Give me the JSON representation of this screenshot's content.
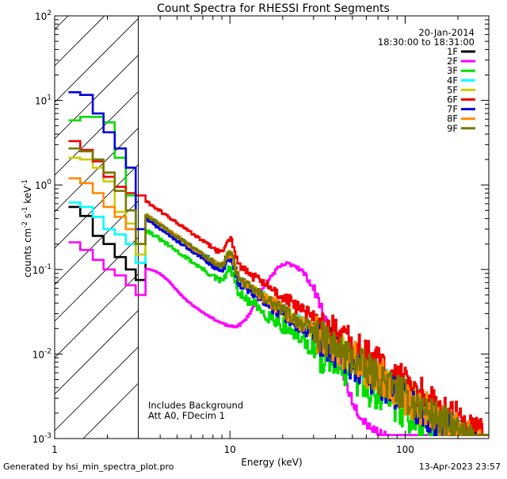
{
  "chart_data": {
    "type": "line",
    "title": "Count Spectra for RHESSI Front Segments",
    "xlabel": "Energy (keV)",
    "ylabel_base": "counts cm",
    "ylabel_exp1": "-2",
    "ylabel_mid": " s",
    "ylabel_exp2": "-1",
    "ylabel_unit": " keV",
    "ylabel_exp3": "-1",
    "x_scale": "log",
    "y_scale": "log",
    "xlim": [
      1,
      300
    ],
    "ylim": [
      0.001,
      100
    ],
    "x_ticks": [
      {
        "v": 1,
        "label": "1"
      },
      {
        "v": 10,
        "label": "10"
      },
      {
        "v": 100,
        "label": "100"
      }
    ],
    "y_ticks": [
      {
        "v": 0.001,
        "base": "10",
        "exp": "-3"
      },
      {
        "v": 0.01,
        "base": "10",
        "exp": "-2"
      },
      {
        "v": 0.1,
        "base": "10",
        "exp": "-1"
      },
      {
        "v": 1,
        "base": "10",
        "exp": "0"
      },
      {
        "v": 10,
        "base": "10",
        "exp": "1"
      },
      {
        "v": 100,
        "base": "10",
        "exp": "2"
      }
    ],
    "excluded_region_keV": [
      1,
      3
    ],
    "date": "20-Jan-2014",
    "time_range": "18:30:00 to 18:31:00",
    "annotation_lines": [
      "Includes Background",
      "Att A0, FDecim 1"
    ],
    "legend": [
      {
        "name": "1F",
        "color": "#000000"
      },
      {
        "name": "2F",
        "color": "#ff00ff"
      },
      {
        "name": "3F",
        "color": "#00dd00"
      },
      {
        "name": "4F",
        "color": "#00ffff"
      },
      {
        "name": "5F",
        "color": "#cccc00"
      },
      {
        "name": "6F",
        "color": "#ee0000"
      },
      {
        "name": "7F",
        "color": "#0000dd"
      },
      {
        "name": "8F",
        "color": "#ff8800"
      },
      {
        "name": "9F",
        "color": "#777700"
      }
    ],
    "series": [
      {
        "name": "1F",
        "color": "#000000",
        "low": [
          0.55,
          0.43,
          0.25,
          0.2,
          0.14,
          0.1,
          0.075
        ],
        "a10": 0.09,
        "bump": 0.7,
        "wide": 1.0,
        "noise": 0.35,
        "seed": 11
      },
      {
        "name": "2F",
        "color": "#ff00ff",
        "low": [
          0.21,
          0.17,
          0.13,
          0.1,
          0.085,
          0.065,
          0.05
        ],
        "a10": 0.022,
        "bump": 0.55,
        "wide": 5.4,
        "noise": 0.12,
        "seed": 23
      },
      {
        "name": "3F",
        "color": "#00dd00",
        "low": [
          5.8,
          6.4,
          6.4,
          5.5,
          2.1,
          0.75,
          0.2
        ],
        "a10": 0.06,
        "bump": 0.65,
        "wide": 1.1,
        "noise": 0.45,
        "seed": 31
      },
      {
        "name": "4F",
        "color": "#00ffff",
        "low": [
          0.62,
          0.55,
          0.42,
          0.3,
          0.26,
          0.2,
          0.12
        ],
        "a10": 0.09,
        "bump": 0.75,
        "wide": 1.1,
        "noise": 0.35,
        "seed": 41
      },
      {
        "name": "5F",
        "color": "#cccc00",
        "low": [
          2.1,
          2.0,
          1.6,
          1.1,
          0.48,
          0.35,
          0.15
        ],
        "a10": 0.09,
        "bump": 0.75,
        "wide": 1.1,
        "noise": 0.35,
        "seed": 53
      },
      {
        "name": "6F",
        "color": "#ee0000",
        "low": [
          3.3,
          2.6,
          1.9,
          1.25,
          0.95,
          0.8,
          0.75
        ],
        "a10": 0.13,
        "bump": 0.8,
        "wide": 1.1,
        "noise": 0.35,
        "seed": 61
      },
      {
        "name": "7F",
        "color": "#0000dd",
        "low": [
          12.5,
          11.6,
          7.0,
          4.2,
          2.7,
          1.6,
          0.3
        ],
        "a10": 0.08,
        "bump": 0.7,
        "wide": 1.1,
        "noise": 0.35,
        "seed": 71
      },
      {
        "name": "8F",
        "color": "#ff8800",
        "low": [
          1.2,
          1.05,
          0.8,
          0.55,
          0.42,
          0.3,
          0.2
        ],
        "a10": 0.09,
        "bump": 0.7,
        "wide": 1.1,
        "noise": 0.4,
        "seed": 83
      },
      {
        "name": "9F",
        "color": "#777700",
        "low": [
          2.7,
          2.5,
          2.0,
          1.4,
          0.85,
          0.5,
          0.2
        ],
        "a10": 0.09,
        "bump": 0.75,
        "wide": 1.1,
        "noise": 0.35,
        "seed": 97
      }
    ],
    "low_energy_bins": [
      1.2,
      1.4,
      1.65,
      1.9,
      2.2,
      2.55,
      2.9,
      3.3
    ]
  },
  "footer": {
    "generated_by": "Generated by hsi_min_spectra_plot.pro",
    "timestamp": "13-Apr-2023 23:57"
  }
}
